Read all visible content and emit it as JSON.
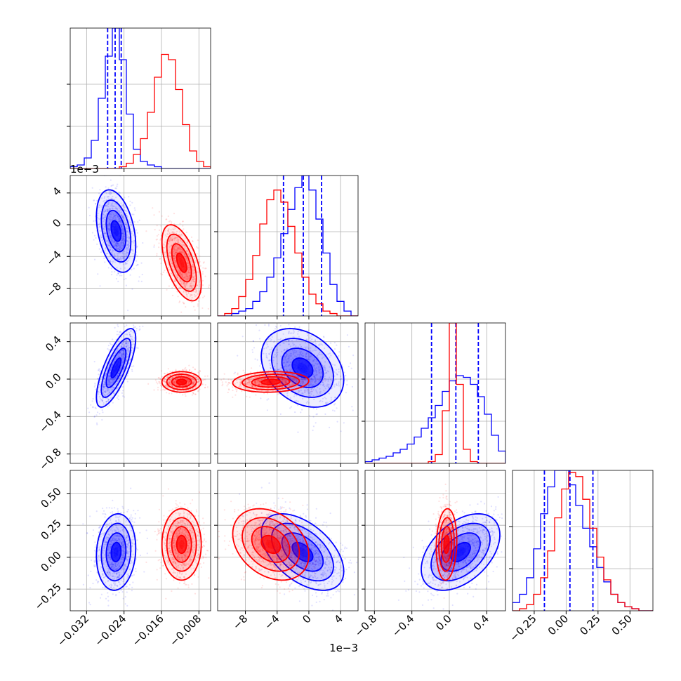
{
  "chart_data": {
    "type": "corner",
    "grid": true,
    "parameters": [
      {
        "range": [
          -0.0355,
          -0.0055
        ],
        "ticks": [
          -0.032,
          -0.024,
          -0.016,
          -0.008
        ],
        "tick_labels": [
          "−0.032",
          "−0.024",
          "−0.016",
          "−0.008"
        ],
        "offset_label": ""
      },
      {
        "range": [
          -0.0115,
          0.0062
        ],
        "ticks": [
          -0.008,
          -0.004,
          0.0,
          0.004
        ],
        "tick_labels": [
          "−8",
          "−4",
          "0",
          "4"
        ],
        "offset_label": "1e−3"
      },
      {
        "range": [
          -0.9,
          0.6
        ],
        "ticks": [
          -0.8,
          -0.4,
          0.0,
          0.4
        ],
        "tick_labels": [
          "−0.8",
          "−0.4",
          "0.0",
          "0.4"
        ],
        "offset_label": ""
      },
      {
        "range": [
          -0.42,
          0.68
        ],
        "ticks": [
          -0.25,
          0.0,
          0.25,
          0.5
        ],
        "tick_labels": [
          "−0.25",
          "0.00",
          "0.25",
          "0.50"
        ],
        "offset_label": ""
      }
    ],
    "series": [
      {
        "color": "#0000ff",
        "mean": [
          -0.0257,
          -0.0008,
          0.12,
          0.04
        ],
        "std": [
          0.0021,
          0.0026,
          0.21,
          0.15
        ],
        "corr": [
          [
            1,
            -0.35,
            0.75,
            0.1
          ],
          [
            -0.35,
            1,
            -0.3,
            -0.5
          ],
          [
            0.75,
            -0.3,
            1,
            0.45
          ],
          [
            0.1,
            -0.5,
            0.45,
            1
          ]
        ],
        "quantiles": [
          [
            -0.0275,
            -0.0259,
            -0.0246
          ],
          [
            -0.0032,
            -0.0007,
            0.0016
          ],
          [
            -0.19,
            0.07,
            0.31
          ],
          [
            -0.17,
            0.03,
            0.21
          ]
        ],
        "histograms": [
          [
            1,
            2,
            6,
            16,
            40,
            64,
            80,
            62,
            31,
            11,
            4,
            2,
            1,
            0,
            0,
            0,
            0,
            0,
            0,
            0
          ],
          [
            0,
            0,
            1,
            2,
            3,
            6,
            10,
            16,
            24,
            34,
            44,
            53,
            58,
            52,
            40,
            26,
            13,
            6,
            2,
            0
          ],
          [
            1,
            2,
            3,
            4,
            6,
            8,
            11,
            15,
            20,
            26,
            33,
            41,
            47,
            50,
            49,
            45,
            38,
            28,
            16,
            7
          ],
          [
            4,
            8,
            16,
            30,
            47,
            60,
            68,
            68,
            61,
            51,
            40,
            31,
            21,
            14,
            8,
            4,
            2,
            1,
            0,
            0
          ]
        ]
      },
      {
        "color": "#ff0000",
        "mean": [
          -0.0117,
          -0.0048,
          -0.03,
          0.1
        ],
        "std": [
          0.0021,
          0.0024,
          0.055,
          0.14
        ],
        "corr": [
          [
            1,
            -0.55,
            0.0,
            0.0
          ],
          [
            -0.55,
            1,
            0.1,
            -0.3
          ],
          [
            0.0,
            0.1,
            1,
            0.1
          ],
          [
            0.0,
            -0.3,
            0.1,
            1
          ]
        ],
        "quantiles": null,
        "histograms": [
          [
            0,
            0,
            0,
            0,
            0,
            0,
            0,
            1,
            3,
            8,
            17,
            32,
            52,
            65,
            62,
            45,
            25,
            10,
            4,
            1
          ],
          [
            0,
            1,
            3,
            8,
            15,
            25,
            38,
            48,
            52,
            47,
            37,
            26,
            16,
            9,
            5,
            2,
            1,
            0,
            0,
            0
          ],
          [
            0,
            0,
            0,
            0,
            0,
            0,
            0,
            0,
            0,
            1,
            5,
            30,
            80,
            45,
            8,
            1,
            0,
            0,
            0,
            0
          ],
          [
            0,
            1,
            3,
            8,
            16,
            29,
            45,
            59,
            67,
            65,
            54,
            40,
            26,
            15,
            8,
            4,
            2,
            1,
            0,
            0
          ]
        ]
      }
    ]
  }
}
